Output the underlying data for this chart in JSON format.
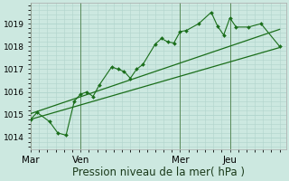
{
  "bg_color": "#cce8e0",
  "grid_color": "#b0d4cc",
  "line_color": "#1a6e1a",
  "xlabel": "Pression niveau de la mer( hPa )",
  "ylim": [
    1013.5,
    1019.9
  ],
  "yticks": [
    1014,
    1015,
    1016,
    1017,
    1018,
    1019
  ],
  "day_labels": [
    "Mar",
    "Ven",
    "Mer",
    "Jeu"
  ],
  "day_positions": [
    0,
    48,
    144,
    192
  ],
  "xlim": [
    0,
    246
  ],
  "series1": [
    [
      0,
      1014.8
    ],
    [
      6,
      1015.1
    ],
    [
      18,
      1014.7
    ],
    [
      26,
      1014.2
    ],
    [
      34,
      1014.1
    ],
    [
      42,
      1015.6
    ],
    [
      48,
      1015.9
    ],
    [
      54,
      1016.0
    ],
    [
      60,
      1015.8
    ],
    [
      66,
      1016.3
    ],
    [
      78,
      1017.1
    ],
    [
      84,
      1017.0
    ],
    [
      90,
      1016.9
    ],
    [
      96,
      1016.6
    ],
    [
      102,
      1017.0
    ],
    [
      108,
      1017.2
    ],
    [
      120,
      1018.1
    ],
    [
      126,
      1018.35
    ],
    [
      132,
      1018.2
    ],
    [
      138,
      1018.15
    ],
    [
      144,
      1018.65
    ],
    [
      150,
      1018.7
    ],
    [
      162,
      1019.0
    ],
    [
      174,
      1019.5
    ],
    [
      180,
      1018.9
    ],
    [
      186,
      1018.5
    ],
    [
      192,
      1019.25
    ],
    [
      198,
      1018.85
    ],
    [
      210,
      1018.85
    ],
    [
      222,
      1019.0
    ],
    [
      240,
      1018.0
    ]
  ],
  "line1": [
    [
      0,
      1014.8
    ],
    [
      240,
      1017.95
    ]
  ],
  "line2": [
    [
      0,
      1015.05
    ],
    [
      240,
      1018.75
    ]
  ],
  "vline_color": "#5a8a5a",
  "xlabel_fontsize": 8.5,
  "ytick_fontsize": 6.5,
  "xtick_fontsize": 7.5
}
